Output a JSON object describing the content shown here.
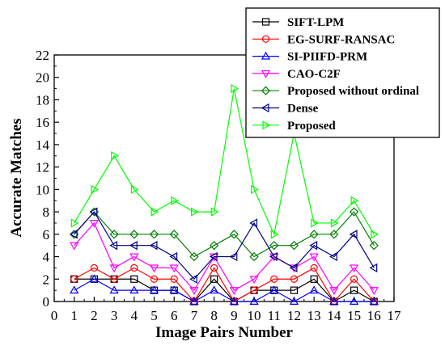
{
  "chart_data": {
    "type": "line",
    "title": "",
    "xlabel": "Image Pairs Number",
    "ylabel": "Accurate Matches",
    "xlim": [
      0,
      17
    ],
    "ylim": [
      0,
      22
    ],
    "x_ticks": [
      0,
      1,
      2,
      3,
      4,
      5,
      6,
      7,
      8,
      9,
      10,
      11,
      12,
      13,
      14,
      15,
      16,
      17
    ],
    "y_ticks": [
      0,
      2,
      4,
      6,
      8,
      10,
      12,
      14,
      16,
      18,
      20,
      22
    ],
    "grid": false,
    "legend_position": "top-right",
    "x": [
      1,
      2,
      3,
      4,
      5,
      6,
      7,
      8,
      9,
      10,
      11,
      12,
      13,
      14,
      15,
      16
    ],
    "series": [
      {
        "name": "SIFT-LPM",
        "marker": "square",
        "color": "#000000",
        "values": [
          2,
          2,
          2,
          2,
          1,
          1,
          0,
          2,
          0,
          1,
          1,
          1,
          2,
          0,
          1,
          0
        ]
      },
      {
        "name": "EG-SURF-RANSAC",
        "marker": "circle",
        "color": "#ff0000",
        "values": [
          2,
          3,
          2,
          3,
          2,
          2,
          0,
          3,
          0,
          1,
          2,
          2,
          3,
          0,
          2,
          0
        ]
      },
      {
        "name": "SI-PIIFD-PRM",
        "marker": "triangle-up",
        "color": "#0000ff",
        "values": [
          1,
          2,
          1,
          1,
          1,
          1,
          0,
          1,
          0,
          0,
          1,
          0,
          1,
          0,
          0,
          0
        ]
      },
      {
        "name": "CAO-C2F",
        "marker": "triangle-down",
        "color": "#ff00ff",
        "values": [
          5,
          7,
          3,
          4,
          3,
          3,
          1,
          4,
          1,
          2,
          4,
          3,
          4,
          1,
          3,
          1
        ]
      },
      {
        "name": "Proposed without ordinal",
        "marker": "diamond",
        "color": "#008000",
        "values": [
          6,
          8,
          6,
          6,
          6,
          6,
          4,
          5,
          6,
          4,
          5,
          5,
          6,
          6,
          8,
          5
        ]
      },
      {
        "name": "Dense",
        "marker": "triangle-left",
        "color": "#000080",
        "values": [
          6,
          8,
          5,
          5,
          5,
          4,
          2,
          4,
          4,
          7,
          4,
          3,
          5,
          4,
          6,
          3
        ]
      },
      {
        "name": "Proposed",
        "marker": "triangle-right",
        "color": "#00ff00",
        "values": [
          7,
          10,
          13,
          10,
          8,
          9,
          8,
          8,
          19,
          10,
          6,
          15,
          7,
          7,
          9,
          6
        ]
      }
    ]
  }
}
